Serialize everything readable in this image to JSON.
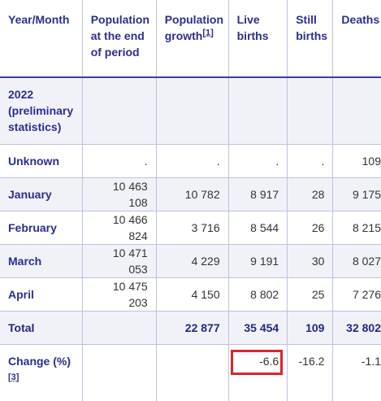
{
  "table": {
    "headers": {
      "year_month": "Year/Month",
      "population": "Population at the end of period",
      "growth": "Population growth",
      "growth_note": "[1]",
      "live_births": "Live births",
      "still_births": "Still births",
      "deaths": "Deaths"
    },
    "year_row": {
      "label": "2022 (preliminary statistics)"
    },
    "rows": [
      {
        "label": "Unknown",
        "population": ".",
        "growth": ".",
        "live_births": ".",
        "still_births": ".",
        "deaths": "109"
      },
      {
        "label": "January",
        "population": "10 463 108",
        "growth": "10 782",
        "live_births": "8 917",
        "still_births": "28",
        "deaths": "9 175"
      },
      {
        "label": "February",
        "population": "10 466 824",
        "growth": "3 716",
        "live_births": "8 544",
        "still_births": "26",
        "deaths": "8 215"
      },
      {
        "label": "March",
        "population": "10 471 053",
        "growth": "4 229",
        "live_births": "9 191",
        "still_births": "30",
        "deaths": "8 027"
      },
      {
        "label": "April",
        "population": "10 475 203",
        "growth": "4 150",
        "live_births": "8 802",
        "still_births": "25",
        "deaths": "7 276"
      }
    ],
    "total": {
      "label": "Total",
      "population": "",
      "growth": "22 877",
      "live_births": "35 454",
      "still_births": "109",
      "deaths": "32 802"
    },
    "change": {
      "label": "Change (%)",
      "note": "[3]",
      "population": "",
      "growth": "",
      "live_births": "-6.6",
      "still_births": "-16.2",
      "deaths": "-1.1"
    }
  },
  "colors": {
    "header_text": "#2a2f8f",
    "shade": "#f1f2f8",
    "highlight": "#d9262c",
    "border": "#bcc2dc"
  }
}
